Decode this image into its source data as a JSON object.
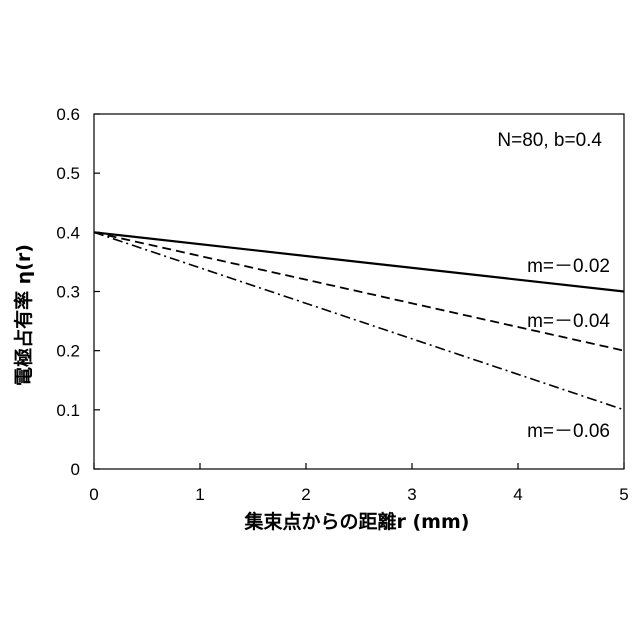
{
  "chart_data": {
    "type": "line",
    "xlabel": "集束点からの距離r (mm)",
    "ylabel": "電極占有率 η(r)",
    "xlim": [
      0,
      5
    ],
    "ylim": [
      0,
      0.6
    ],
    "x_ticks": [
      "0",
      "1",
      "2",
      "3",
      "4",
      "5"
    ],
    "y_ticks": [
      "0",
      "0.1",
      "0.2",
      "0.3",
      "0.4",
      "0.5",
      "0.6"
    ],
    "grid": false,
    "annotation": "N=80, b=0.4",
    "series": [
      {
        "name": "m=－0.02",
        "style": "solid",
        "color": "#000000",
        "x": [
          0,
          5
        ],
        "y": [
          0.4,
          0.3
        ]
      },
      {
        "name": "m=－0.04",
        "style": "dashed",
        "color": "#000000",
        "x": [
          0,
          5
        ],
        "y": [
          0.4,
          0.2
        ]
      },
      {
        "name": "m=－0.06",
        "style": "dash-dot",
        "color": "#000000",
        "x": [
          0,
          5
        ],
        "y": [
          0.4,
          0.1
        ]
      }
    ]
  }
}
